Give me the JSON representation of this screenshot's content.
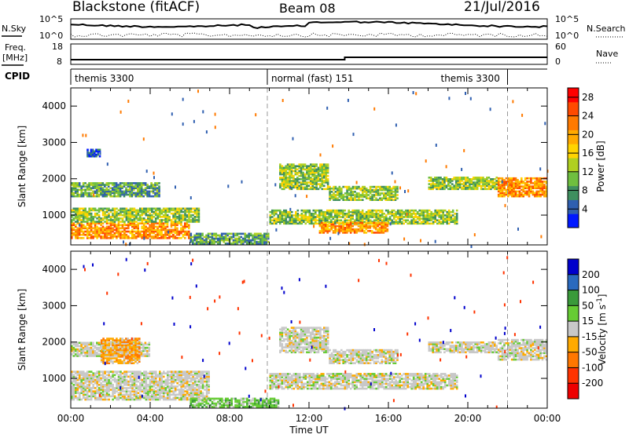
{
  "header": {
    "station": "Blackstone (fitACF)",
    "beam": "Beam 08",
    "date": "21/Jul/2016"
  },
  "noise_panel": {
    "left_label": "N.Sky",
    "right_label": "N.Search",
    "left_ticks": [
      "10^5",
      "10^0"
    ],
    "right_ticks": [
      "10^5",
      "10^0"
    ]
  },
  "freq_panel": {
    "left_label_line1": "Freq.",
    "left_label_line2": "[MHz]",
    "left_ticks": [
      "18",
      "8"
    ],
    "right_label": "Nave",
    "right_ticks": [
      "60",
      "0"
    ]
  },
  "cpid_panel": {
    "label": "CPID",
    "segments": [
      {
        "text": "themis 3300",
        "start_h": 0.0,
        "end_h": 9.9
      },
      {
        "text": "normal (fast) 151",
        "start_h": 9.9,
        "end_h": 22.0
      },
      {
        "text": "themis 3300",
        "start_h": 22.0,
        "end_h": 24.0
      }
    ]
  },
  "chart_data": [
    {
      "type": "heatmap",
      "name": "power",
      "ylabel": "Slant Range [km]",
      "yticks": [
        "1000",
        "2000",
        "3000",
        "4000"
      ],
      "ylim": [
        180,
        4500
      ],
      "xlim": [
        0,
        24
      ],
      "colorbar": {
        "label": "Power [dB]",
        "ticks": [
          "4",
          "8",
          "12",
          "16",
          "20",
          "24",
          "28"
        ],
        "range": [
          0,
          30
        ],
        "colors": [
          "#0018ff",
          "#2f5fb0",
          "#3f8f5f",
          "#6fbf3f",
          "#b0d020",
          "#ffd400",
          "#ffaa00",
          "#ff7a00",
          "#ff4a00",
          "#ff0000"
        ]
      },
      "bands": [
        {
          "t0": 0.0,
          "t1": 6.0,
          "r0": 350,
          "r1": 800,
          "level": 21
        },
        {
          "t0": 0.0,
          "t1": 6.5,
          "r0": 800,
          "r1": 1200,
          "level": 11
        },
        {
          "t0": 0.0,
          "t1": 4.5,
          "r0": 1500,
          "r1": 1900,
          "level": 10
        },
        {
          "t0": 6.0,
          "t1": 10.0,
          "r0": 200,
          "r1": 500,
          "level": 9
        },
        {
          "t0": 10.0,
          "t1": 19.5,
          "r0": 750,
          "r1": 1150,
          "level": 13
        },
        {
          "t0": 12.5,
          "t1": 16.0,
          "r0": 500,
          "r1": 800,
          "level": 20
        },
        {
          "t0": 10.5,
          "t1": 13.0,
          "r0": 1700,
          "r1": 2400,
          "level": 11
        },
        {
          "t0": 13.0,
          "t1": 16.5,
          "r0": 1400,
          "r1": 1800,
          "level": 12
        },
        {
          "t0": 18.0,
          "t1": 21.5,
          "r0": 1700,
          "r1": 2050,
          "level": 11
        },
        {
          "t0": 21.5,
          "t1": 24.0,
          "r0": 1500,
          "r1": 2000,
          "level": 22
        },
        {
          "t0": 0.8,
          "t1": 1.5,
          "r0": 2600,
          "r1": 2800,
          "level": 4
        }
      ]
    },
    {
      "type": "heatmap",
      "name": "velocity",
      "ylabel": "Slant Range [km]",
      "yticks": [
        "1000",
        "2000",
        "3000",
        "4000"
      ],
      "ylim": [
        180,
        4500
      ],
      "xlim": [
        0,
        24
      ],
      "colorbar": {
        "label": "Velocity [m s^-1]",
        "ticks": [
          "200",
          "100",
          "50",
          "15",
          "-15",
          "-50",
          "-100",
          "-200"
        ],
        "colors": [
          "#0000cc",
          "#2a6abf",
          "#3a9a3a",
          "#66cc33",
          "#c8c8c8",
          "#ffaa00",
          "#ff7700",
          "#ff3300",
          "#ee0000"
        ]
      },
      "bands": [
        {
          "t0": 0.0,
          "t1": 7.0,
          "r0": 400,
          "r1": 1200,
          "level": "gray"
        },
        {
          "t0": 0.0,
          "t1": 4.0,
          "r0": 1600,
          "r1": 2000,
          "level": "gray"
        },
        {
          "t0": 1.5,
          "t1": 3.5,
          "r0": 1400,
          "r1": 2100,
          "level": "orange"
        },
        {
          "t0": 6.0,
          "t1": 10.5,
          "r0": 200,
          "r1": 450,
          "level": "green"
        },
        {
          "t0": 10.0,
          "t1": 19.5,
          "r0": 700,
          "r1": 1150,
          "level": "gray"
        },
        {
          "t0": 10.5,
          "t1": 13.0,
          "r0": 1700,
          "r1": 2400,
          "level": "gray"
        },
        {
          "t0": 13.0,
          "t1": 16.5,
          "r0": 1400,
          "r1": 1800,
          "level": "gray"
        },
        {
          "t0": 18.0,
          "t1": 21.5,
          "r0": 1700,
          "r1": 2000,
          "level": "gray"
        },
        {
          "t0": 21.5,
          "t1": 24.0,
          "r0": 1500,
          "r1": 2050,
          "level": "gray"
        }
      ]
    }
  ],
  "xaxis": {
    "label": "Time UT",
    "ticks": [
      "00:00",
      "04:00",
      "08:00",
      "12:00",
      "16:00",
      "20:00",
      "00:00"
    ]
  }
}
